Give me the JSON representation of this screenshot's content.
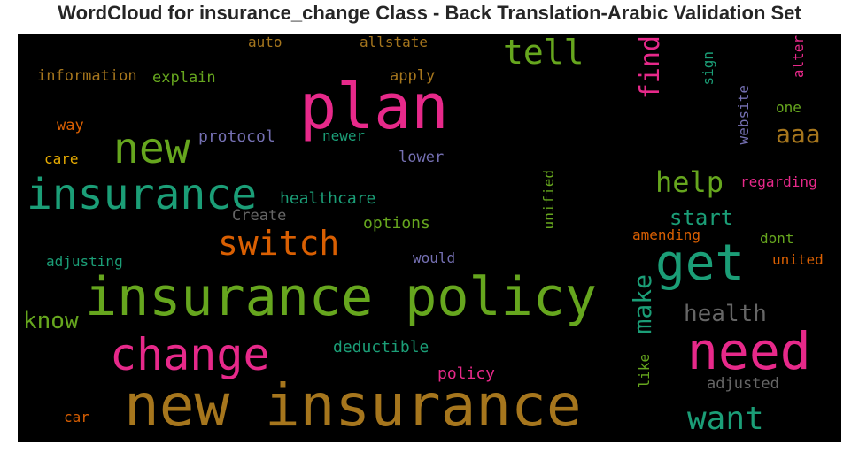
{
  "title": "WordCloud for insurance_change Class - Back Translation-Arabic Validation Set",
  "colors": {
    "background": "#000000",
    "pink": "#e7298a",
    "green": "#66a61e",
    "teal": "#1b9e77",
    "orange": "#d95f02",
    "gold": "#a6761d",
    "purple": "#7570b3",
    "yellow": "#e6ab02",
    "gray": "#666666"
  },
  "words": {
    "new_insurance": "new insurance",
    "insurance_policy": "insurance policy",
    "plan": "plan",
    "insurance": "insurance",
    "need": "need",
    "get": "get",
    "change": "change",
    "new": "new",
    "switch": "switch",
    "want": "want",
    "tell": "tell",
    "help": "help",
    "find": "find",
    "make": "make",
    "health": "health",
    "know": "know",
    "aaa": "aaa",
    "start": "start",
    "protocol": "protocol",
    "healthcare": "healthcare",
    "newer": "newer",
    "lower": "lower",
    "options": "options",
    "deductible": "deductible",
    "policy": "policy",
    "would": "would",
    "adjusting": "adjusting",
    "create": "Create",
    "information": "information",
    "explain": "explain",
    "auto": "auto",
    "allstate": "allstate",
    "apply": "apply",
    "way": "way",
    "care": "care",
    "car": "car",
    "unified": "unified",
    "sign": "sign",
    "website": "website",
    "alter": "alter",
    "one": "one",
    "regarding": "regarding",
    "amending": "amending",
    "dont": "dont",
    "united": "united",
    "like": "like",
    "adjusted": "adjusted"
  }
}
